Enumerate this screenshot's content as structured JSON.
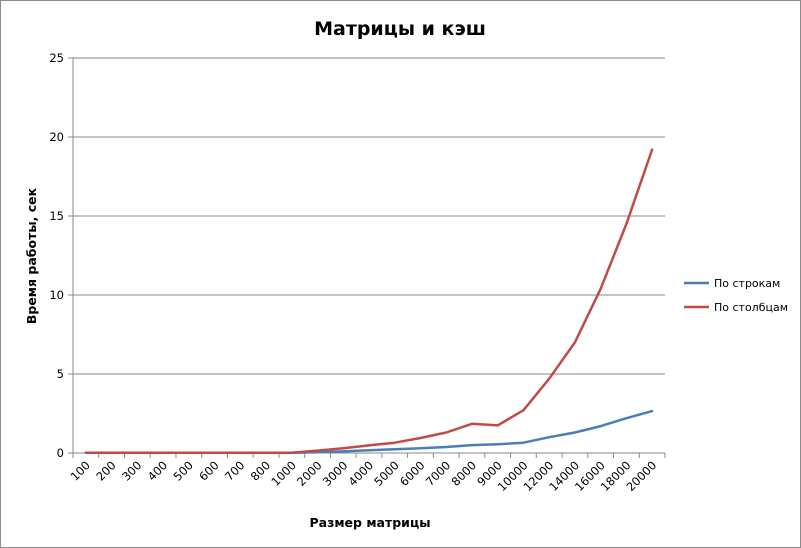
{
  "chart_data": {
    "type": "line",
    "title": "Матрицы и кэш",
    "xlabel": "Размер матрицы",
    "ylabel": "Время работы, сек",
    "categories": [
      "100",
      "200",
      "300",
      "400",
      "500",
      "600",
      "700",
      "800",
      "1000",
      "2000",
      "3000",
      "4000",
      "5000",
      "6000",
      "7000",
      "8000",
      "9000",
      "10000",
      "12000",
      "14000",
      "16000",
      "18000",
      "20000"
    ],
    "ylim": [
      0,
      25
    ],
    "yticks": [
      0,
      5,
      10,
      15,
      20,
      25
    ],
    "grid": true,
    "legend_position": "right",
    "series": [
      {
        "name": "По строкам",
        "color": "#4a7ebb",
        "values": [
          0.01,
          0.01,
          0.01,
          0.01,
          0.01,
          0.01,
          0.01,
          0.01,
          0.02,
          0.05,
          0.1,
          0.17,
          0.24,
          0.3,
          0.38,
          0.5,
          0.55,
          0.65,
          1.0,
          1.3,
          1.7,
          2.2,
          2.65
        ]
      },
      {
        "name": "По столбцам",
        "color": "#be4b48",
        "values": [
          0.01,
          0.01,
          0.01,
          0.01,
          0.01,
          0.01,
          0.01,
          0.01,
          0.02,
          0.15,
          0.3,
          0.48,
          0.65,
          0.95,
          1.3,
          1.85,
          1.75,
          2.7,
          4.7,
          7.0,
          10.4,
          14.5,
          19.2
        ]
      }
    ]
  }
}
